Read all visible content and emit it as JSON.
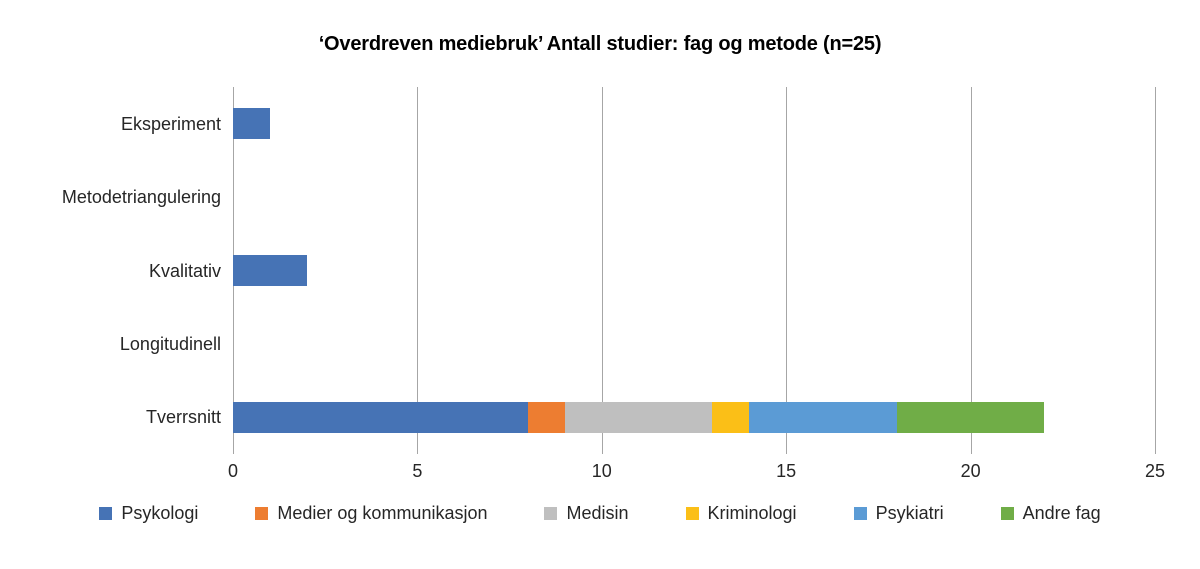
{
  "chart_data": {
    "type": "bar",
    "orientation": "horizontal",
    "stacked": true,
    "title": "‘Overdreven mediebruk’ Antall studier: fag og metode (n=25)",
    "categories": [
      "Eksperiment",
      "Metodetriangulering",
      "Kvalitativ",
      "Longitudinell",
      "Tverrsnitt"
    ],
    "series": [
      {
        "name": "Psykologi",
        "color": "#4673B5",
        "values": [
          1,
          0,
          2,
          0,
          8
        ]
      },
      {
        "name": "Medier og kommunikasjon",
        "color": "#ED7D31",
        "values": [
          0,
          0,
          0,
          0,
          1
        ]
      },
      {
        "name": "Medisin",
        "color": "#BFBFBF",
        "values": [
          0,
          0,
          0,
          0,
          4
        ]
      },
      {
        "name": "Kriminologi",
        "color": "#FBBF17",
        "values": [
          0,
          0,
          0,
          0,
          1
        ]
      },
      {
        "name": "Psykiatri",
        "color": "#5B9BD5",
        "values": [
          0,
          0,
          0,
          0,
          4
        ]
      },
      {
        "name": "Andre fag",
        "color": "#70AD47",
        "values": [
          0,
          0,
          0,
          0,
          4
        ]
      }
    ],
    "x_ticks": [
      "0",
      "5",
      "10",
      "15",
      "20",
      "25"
    ],
    "x_tick_values": [
      0,
      5,
      10,
      15,
      20,
      25
    ],
    "xlim": [
      0,
      25
    ],
    "grid": "vertical",
    "gridline_color": "#A6A6A6",
    "text_color": "#262626",
    "legend_position": "bottom"
  }
}
